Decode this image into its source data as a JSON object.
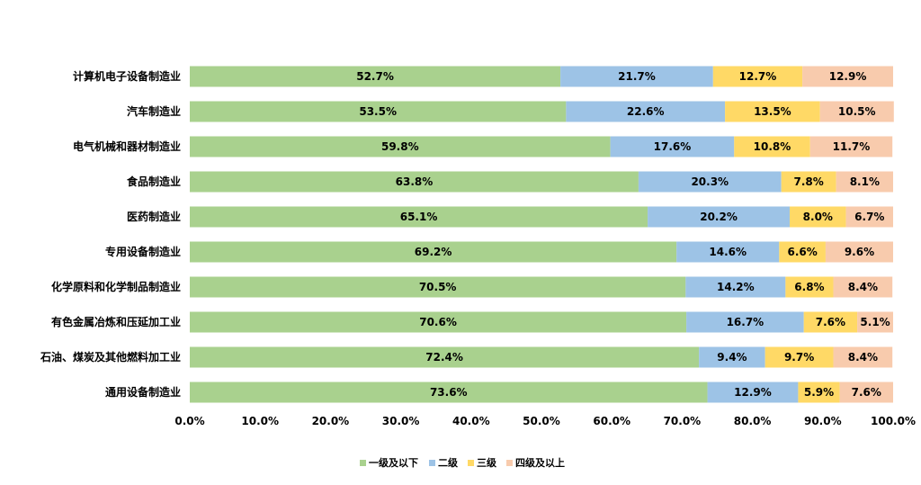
{
  "chart_data": {
    "type": "bar",
    "orientation": "horizontal",
    "stacked": true,
    "categories": [
      "计算机电子设备制造业",
      "汽车制造业",
      "电气机械和器材制造业",
      "食品制造业",
      "医药制造业",
      "专用设备制造业",
      "化学原料和化学制品制造业",
      "有色金属冶炼和压延加工业",
      "石油、煤炭及其他燃料加工业",
      "通用设备制造业"
    ],
    "series": [
      {
        "name": "一级及以下",
        "color": "#a9d18e",
        "values": [
          52.7,
          53.5,
          59.8,
          63.8,
          65.1,
          69.2,
          70.5,
          70.6,
          72.4,
          73.6
        ],
        "labels": [
          "52.7%",
          "53.5%",
          "59.8%",
          "63.8%",
          "65.1%",
          "69.2%",
          "70.5%",
          "70.6%",
          "72.4%",
          "73.6%"
        ]
      },
      {
        "name": "二级",
        "color": "#9dc3e6",
        "values": [
          21.7,
          22.6,
          17.6,
          20.3,
          20.2,
          14.6,
          14.2,
          16.7,
          9.4,
          12.9
        ],
        "labels": [
          "21.7%",
          "22.6%",
          "17.6%",
          "20.3%",
          "20.2%",
          "14.6%",
          "14.2%",
          "16.7%",
          "9.4%",
          "12.9%"
        ]
      },
      {
        "name": "三级",
        "color": "#ffd966",
        "values": [
          12.7,
          13.5,
          10.8,
          7.8,
          8.0,
          6.6,
          6.8,
          7.6,
          9.7,
          5.9
        ],
        "labels": [
          "12.7%",
          "13.5%",
          "10.8%",
          "7.8%",
          "8.0%",
          "6.6%",
          "6.8%",
          "7.6%",
          "9.7%",
          "5.9%"
        ]
      },
      {
        "name": "四级及以上",
        "color": "#f8cbad",
        "values": [
          12.9,
          10.5,
          11.7,
          8.1,
          6.7,
          9.6,
          8.4,
          5.1,
          8.4,
          7.6
        ],
        "labels": [
          "12.9%",
          "10.5%",
          "11.7%",
          "8.1%",
          "6.7%",
          "9.6%",
          "8.4%",
          "5.1%",
          "8.4%",
          "7.6%"
        ]
      }
    ],
    "xlim": [
      0,
      100
    ],
    "x_ticks": [
      "0.0%",
      "10.0%",
      "20.0%",
      "30.0%",
      "40.0%",
      "50.0%",
      "60.0%",
      "70.0%",
      "80.0%",
      "90.0%",
      "100.0%"
    ],
    "grid": false,
    "legend_position": "bottom"
  }
}
